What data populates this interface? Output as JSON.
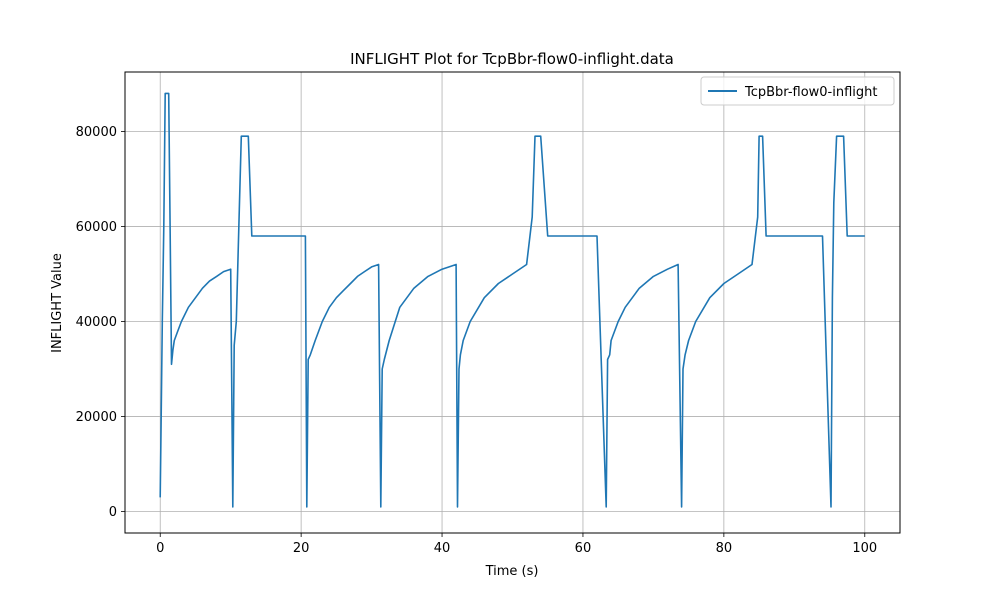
{
  "chart_data": {
    "type": "line",
    "title": "INFLIGHT Plot for TcpBbr-flow0-inflight.data",
    "xlabel": "Time (s)",
    "ylabel": "INFLIGHT Value",
    "xlim": [
      -5,
      105
    ],
    "ylim": [
      -4500,
      92500
    ],
    "xticks": [
      0,
      20,
      40,
      60,
      80,
      100
    ],
    "yticks": [
      0,
      20000,
      40000,
      60000,
      80000
    ],
    "grid": true,
    "legend_position": "upper right",
    "series": [
      {
        "name": "TcpBbr-flow0-inflight",
        "color": "#1f77b4",
        "x": [
          0.0,
          0.1,
          0.3,
          0.5,
          0.7,
          0.9,
          1.0,
          1.2,
          1.4,
          1.6,
          1.8,
          2.0,
          2.5,
          3.0,
          4.0,
          5.0,
          6.0,
          7.0,
          8.0,
          9.0,
          10.0,
          10.3,
          10.5,
          10.8,
          11.2,
          11.5,
          12.0,
          12.5,
          13.0,
          14.0,
          15.0,
          16.0,
          17.0,
          18.0,
          19.0,
          20.0,
          20.6,
          20.8,
          21.0,
          21.3,
          22.0,
          23.0,
          24.0,
          25.0,
          26.0,
          27.0,
          28.0,
          29.0,
          30.0,
          31.0,
          31.3,
          31.5,
          31.8,
          32.5,
          34.0,
          36.0,
          38.0,
          40.0,
          41.0,
          42.0,
          42.2,
          42.4,
          42.6,
          43.0,
          44.0,
          46.0,
          48.0,
          50.0,
          52.0,
          52.8,
          53.2,
          53.5,
          54.0,
          55.0,
          55.5,
          56.0,
          58.0,
          60.0,
          62.0,
          63.3,
          63.5,
          63.8,
          64.0,
          65.0,
          66.0,
          68.0,
          70.0,
          72.0,
          73.5,
          74.0,
          74.2,
          74.5,
          75.0,
          76.0,
          78.0,
          80.0,
          82.0,
          84.0,
          84.8,
          85.0,
          85.2,
          85.5,
          86.0,
          86.5,
          87.0,
          88.0,
          90.0,
          92.0,
          94.0,
          95.2,
          95.4,
          95.6,
          96.0,
          96.5,
          97.0,
          97.5,
          98.0,
          98.5,
          99.0,
          100.0
        ],
        "y": [
          3000,
          15000,
          40000,
          60000,
          88000,
          88000,
          88000,
          88000,
          60000,
          31000,
          34000,
          36000,
          38000,
          40000,
          43000,
          45000,
          47000,
          48500,
          49500,
          50500,
          51000,
          1000,
          35000,
          40000,
          62000,
          79000,
          79000,
          79000,
          58000,
          58000,
          58000,
          58000,
          58000,
          58000,
          58000,
          58000,
          58000,
          1000,
          32000,
          33000,
          36000,
          40000,
          43000,
          45000,
          46500,
          48000,
          49500,
          50500,
          51500,
          52000,
          1000,
          30000,
          32000,
          36000,
          43000,
          47000,
          49500,
          51000,
          51500,
          52000,
          1000,
          30000,
          33000,
          36000,
          40000,
          45000,
          48000,
          50000,
          52000,
          62000,
          79000,
          79000,
          79000,
          58000,
          58000,
          58000,
          58000,
          58000,
          58000,
          1000,
          32000,
          33000,
          36000,
          40000,
          43000,
          47000,
          49500,
          51000,
          52000,
          1000,
          30000,
          33000,
          36000,
          40000,
          45000,
          48000,
          50000,
          52000,
          62000,
          79000,
          79000,
          79000,
          58000,
          58000,
          58000,
          58000,
          58000,
          58000,
          58000,
          1000,
          45000,
          65000,
          79000,
          79000,
          79000,
          58000,
          58000,
          58000,
          58000,
          58000
        ]
      }
    ]
  }
}
